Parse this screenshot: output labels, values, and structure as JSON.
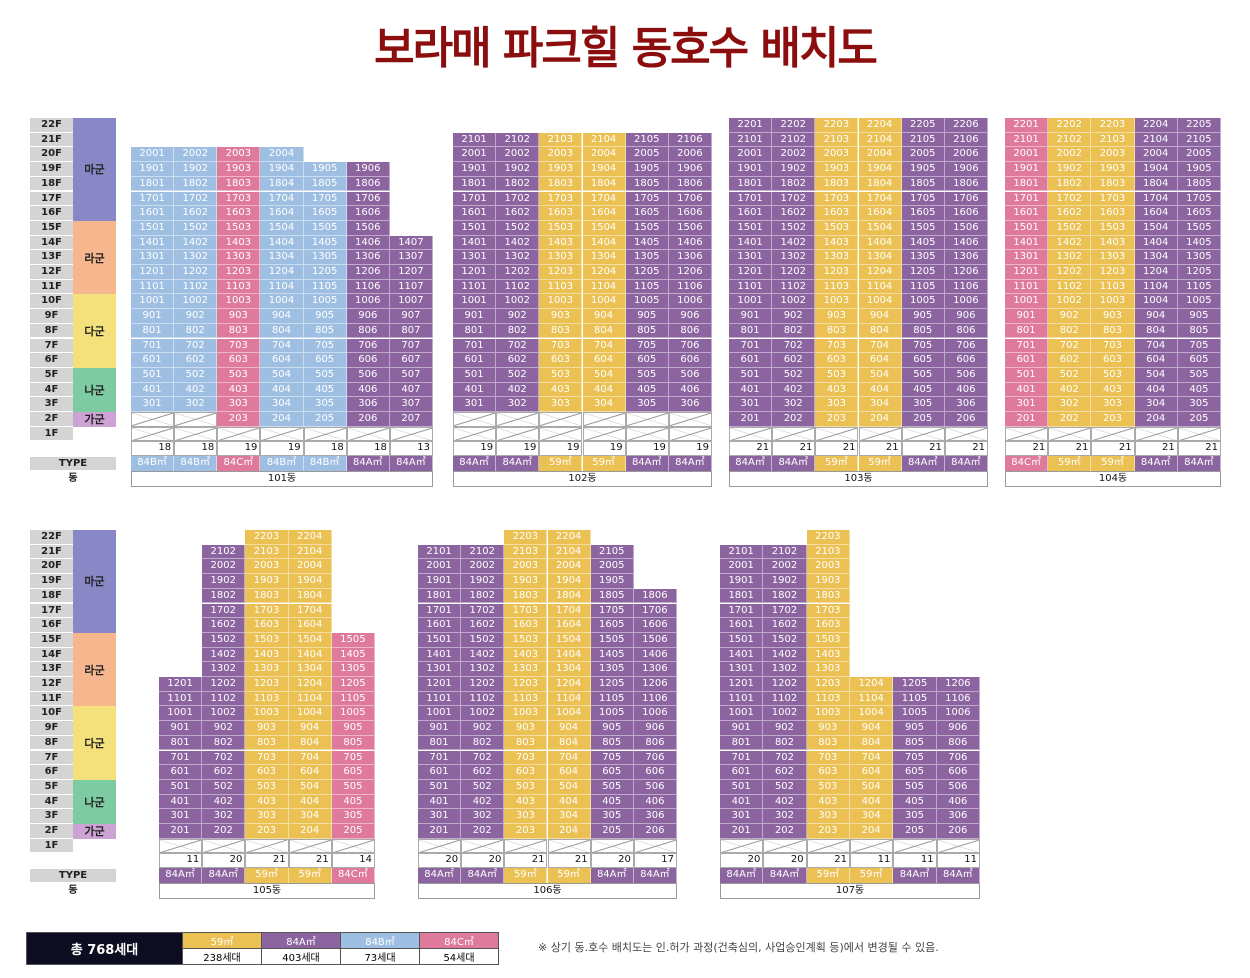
{
  "title": "보라매 파크힐 동호수 배치도",
  "type_colors": {
    "59㎡": "#ebc154",
    "84A㎡": "#8b64a0",
    "84B㎡": "#9ebfe2",
    "84C㎡": "#df7a9c"
  },
  "floor_labels": [
    "22F",
    "21F",
    "20F",
    "19F",
    "18F",
    "17F",
    "16F",
    "15F",
    "14F",
    "13F",
    "12F",
    "11F",
    "10F",
    "9F",
    "8F",
    "7F",
    "6F",
    "5F",
    "4F",
    "3F",
    "2F",
    "1F"
  ],
  "floor_groups": [
    {
      "label": "마군",
      "top": 22,
      "bottom": 16,
      "color": "#8a87c6"
    },
    {
      "label": "라군",
      "top": 15,
      "bottom": 11,
      "color": "#f6b68e"
    },
    {
      "label": "다군",
      "top": 10,
      "bottom": 6,
      "color": "#f5e17c"
    },
    {
      "label": "나군",
      "top": 5,
      "bottom": 3,
      "color": "#7dcba2"
    },
    {
      "label": "가군",
      "top": 2,
      "bottom": 2,
      "color": "#cca3d4"
    }
  ],
  "row_labels": {
    "type": "TYPE",
    "dong": "동"
  },
  "buildings": [
    {
      "name": "101동",
      "columns": [
        {
          "line": 1,
          "type": "84B㎡",
          "top": 20,
          "bottom": 3,
          "count": "18"
        },
        {
          "line": 2,
          "type": "84B㎡",
          "top": 20,
          "bottom": 3,
          "count": "18"
        },
        {
          "line": 3,
          "type": "84C㎡",
          "top": 20,
          "bottom": 2,
          "count": "19"
        },
        {
          "line": 4,
          "type": "84B㎡",
          "top": 20,
          "bottom": 2,
          "count": "19"
        },
        {
          "line": 5,
          "type": "84B㎡",
          "top": 19,
          "bottom": 2,
          "count": "18"
        },
        {
          "line": 6,
          "type": "84A㎡",
          "top": 19,
          "bottom": 2,
          "count": "18"
        },
        {
          "line": 7,
          "type": "84A㎡",
          "top": 14,
          "bottom": 2,
          "count": "13"
        }
      ]
    },
    {
      "name": "102동",
      "columns": [
        {
          "line": 1,
          "type": "84A㎡",
          "top": 21,
          "bottom": 3,
          "count": "19"
        },
        {
          "line": 2,
          "type": "84A㎡",
          "top": 21,
          "bottom": 3,
          "count": "19"
        },
        {
          "line": 3,
          "type": "59㎡",
          "top": 21,
          "bottom": 3,
          "count": "19"
        },
        {
          "line": 4,
          "type": "59㎡",
          "top": 21,
          "bottom": 3,
          "count": "19"
        },
        {
          "line": 5,
          "type": "84A㎡",
          "top": 21,
          "bottom": 3,
          "count": "19"
        },
        {
          "line": 6,
          "type": "84A㎡",
          "top": 21,
          "bottom": 3,
          "count": "19"
        }
      ]
    },
    {
      "name": "103동",
      "columns": [
        {
          "line": 1,
          "type": "84A㎡",
          "top": 22,
          "bottom": 2,
          "count": "21"
        },
        {
          "line": 2,
          "type": "84A㎡",
          "top": 22,
          "bottom": 2,
          "count": "21"
        },
        {
          "line": 3,
          "type": "59㎡",
          "top": 22,
          "bottom": 2,
          "count": "21"
        },
        {
          "line": 4,
          "type": "59㎡",
          "top": 22,
          "bottom": 2,
          "count": "21"
        },
        {
          "line": 5,
          "type": "84A㎡",
          "top": 22,
          "bottom": 2,
          "count": "21"
        },
        {
          "line": 6,
          "type": "84A㎡",
          "top": 22,
          "bottom": 2,
          "count": "21"
        }
      ]
    },
    {
      "name": "104동",
      "columns": [
        {
          "line": 1,
          "type": "84C㎡",
          "top": 22,
          "bottom": 2,
          "count": "21"
        },
        {
          "line": 2,
          "type": "59㎡",
          "top": 22,
          "bottom": 2,
          "count": "21"
        },
        {
          "line": 3,
          "type": "59㎡",
          "top": 22,
          "bottom": 2,
          "count": "21"
        },
        {
          "line": 4,
          "type": "84A㎡",
          "top": 22,
          "bottom": 2,
          "count": "21"
        },
        {
          "line": 5,
          "type": "84A㎡",
          "top": 22,
          "bottom": 2,
          "count": "21"
        }
      ]
    },
    {
      "name": "105동",
      "columns": [
        {
          "line": 1,
          "type": "84A㎡",
          "top": 12,
          "bottom": 2,
          "count": "11"
        },
        {
          "line": 2,
          "type": "84A㎡",
          "top": 21,
          "bottom": 2,
          "count": "20"
        },
        {
          "line": 3,
          "type": "59㎡",
          "top": 22,
          "bottom": 2,
          "count": "21"
        },
        {
          "line": 4,
          "type": "59㎡",
          "top": 22,
          "bottom": 2,
          "count": "21"
        },
        {
          "line": 5,
          "type": "84C㎡",
          "top": 15,
          "bottom": 2,
          "count": "14"
        }
      ]
    },
    {
      "name": "106동",
      "columns": [
        {
          "line": 1,
          "type": "84A㎡",
          "top": 21,
          "bottom": 2,
          "count": "20"
        },
        {
          "line": 2,
          "type": "84A㎡",
          "top": 21,
          "bottom": 2,
          "count": "20"
        },
        {
          "line": 3,
          "type": "59㎡",
          "top": 22,
          "bottom": 2,
          "count": "21"
        },
        {
          "line": 4,
          "type": "59㎡",
          "top": 22,
          "bottom": 2,
          "count": "21"
        },
        {
          "line": 5,
          "type": "84A㎡",
          "top": 21,
          "bottom": 2,
          "count": "20"
        },
        {
          "line": 6,
          "type": "84A㎡",
          "top": 18,
          "bottom": 2,
          "count": "17"
        }
      ]
    },
    {
      "name": "107동",
      "columns": [
        {
          "line": 1,
          "type": "84A㎡",
          "top": 21,
          "bottom": 2,
          "count": "20"
        },
        {
          "line": 2,
          "type": "84A㎡",
          "top": 21,
          "bottom": 2,
          "count": "20"
        },
        {
          "line": 3,
          "type": "59㎡",
          "top": 22,
          "bottom": 2,
          "count": "21"
        },
        {
          "line": 4,
          "type": "59㎡",
          "top": 12,
          "bottom": 2,
          "count": "11"
        },
        {
          "line": 5,
          "type": "84A㎡",
          "top": 12,
          "bottom": 2,
          "count": "11"
        },
        {
          "line": 6,
          "type": "84A㎡",
          "top": 12,
          "bottom": 2,
          "count": "11"
        }
      ]
    }
  ],
  "legend": {
    "total": "총 768세대",
    "items": [
      {
        "type": "59㎡",
        "count": "238세대"
      },
      {
        "type": "84A㎡",
        "count": "403세대"
      },
      {
        "type": "84B㎡",
        "count": "73세대"
      },
      {
        "type": "84C㎡",
        "count": "54세대"
      }
    ]
  },
  "note": "※ 상기 동.호수 배치도는 인.허가 과정(건축심의, 사업승인계획 등)에서 변경될 수 있음."
}
